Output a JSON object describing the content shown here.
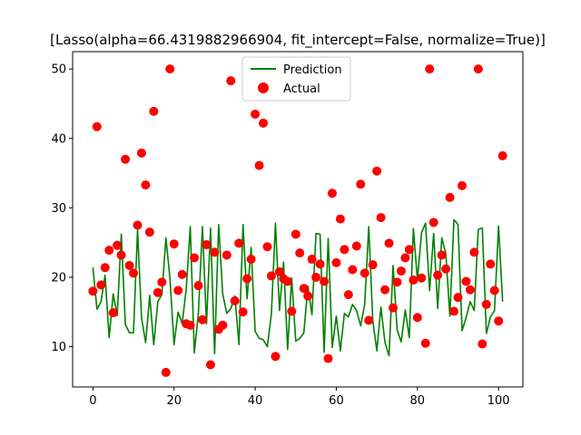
{
  "chart_data": {
    "type": "line",
    "title": "[Lasso(alpha=66.4319882966904, fit_intercept=False, normalize=True)]",
    "xlabel": "",
    "ylabel": "",
    "xlim": [
      -5,
      106
    ],
    "ylim": [
      4.2,
      52.5
    ],
    "x_ticks": [
      0,
      20,
      40,
      60,
      80,
      100
    ],
    "y_ticks": [
      10,
      20,
      30,
      40,
      50
    ],
    "legend_position": "upper center",
    "series": [
      {
        "name": "Prediction",
        "kind": "line",
        "color": "#008000",
        "x": [
          0,
          1,
          2,
          3,
          4,
          5,
          6,
          7,
          8,
          9,
          10,
          11,
          12,
          13,
          14,
          15,
          16,
          17,
          18,
          19,
          20,
          21,
          22,
          23,
          24,
          25,
          26,
          27,
          28,
          29,
          30,
          31,
          32,
          33,
          34,
          35,
          36,
          37,
          38,
          39,
          40,
          41,
          42,
          43,
          44,
          45,
          46,
          47,
          48,
          49,
          50,
          51,
          52,
          53,
          54,
          55,
          56,
          57,
          58,
          59,
          60,
          61,
          62,
          63,
          64,
          65,
          66,
          67,
          68,
          69,
          70,
          71,
          72,
          73,
          74,
          75,
          76,
          77,
          78,
          79,
          80,
          81,
          82,
          83,
          84,
          85,
          86,
          87,
          88,
          89,
          90,
          91,
          92,
          93,
          94,
          95,
          96,
          97,
          98,
          99,
          100,
          101
        ],
        "values": [
          21.4,
          15.4,
          16.5,
          20.3,
          11.3,
          17.6,
          14.5,
          26.2,
          13.2,
          12.0,
          12.0,
          26.8,
          14.1,
          10.6,
          17.4,
          10.3,
          16.5,
          17.5,
          25.7,
          19.8,
          10.3,
          15.0,
          13.3,
          18.3,
          27.3,
          9.1,
          14.8,
          27.3,
          13.3,
          27.1,
          9.0,
          27.6,
          17.6,
          14.8,
          15.5,
          17.3,
          10.3,
          27.6,
          16.9,
          24.3,
          12.2,
          11.2,
          11.0,
          10.0,
          14.7,
          27.8,
          15.2,
          22.2,
          9.6,
          19.9,
          10.8,
          11.2,
          12.0,
          18.7,
          14.6,
          26.3,
          26.2,
          9.2,
          25.6,
          9.9,
          14.4,
          9.4,
          14.8,
          14.3,
          16.1,
          15.2,
          13.0,
          16.1,
          27.3,
          13.7,
          9.4,
          15.7,
          10.6,
          8.7,
          21.7,
          12.4,
          10.7,
          15.3,
          11.3,
          27.0,
          19.6,
          26.4,
          27.8,
          18.1,
          26.3,
          15.5,
          25.7,
          23.4,
          14.4,
          28.3,
          27.6,
          12.3,
          14.2,
          16.5,
          15.2,
          26.9,
          27.1,
          11.9,
          14.3,
          15.2,
          27.4,
          16.5
        ]
      },
      {
        "name": "Actual",
        "kind": "scatter",
        "color": "#ff0000",
        "x": [
          0,
          1,
          2,
          3,
          4,
          5,
          6,
          7,
          8,
          9,
          10,
          11,
          12,
          13,
          14,
          15,
          16,
          17,
          18,
          19,
          20,
          21,
          22,
          23,
          24,
          25,
          26,
          27,
          28,
          29,
          30,
          31,
          32,
          33,
          34,
          35,
          36,
          37,
          38,
          39,
          40,
          41,
          42,
          43,
          44,
          45,
          46,
          47,
          48,
          49,
          50,
          51,
          52,
          53,
          54,
          55,
          56,
          57,
          58,
          59,
          60,
          61,
          62,
          63,
          64,
          65,
          66,
          67,
          68,
          69,
          70,
          71,
          72,
          73,
          74,
          75,
          76,
          77,
          78,
          79,
          80,
          81,
          82,
          83,
          84,
          85,
          86,
          87,
          88,
          89,
          90,
          91,
          92,
          93,
          94,
          95,
          96,
          97,
          98,
          99,
          100,
          101
        ],
        "values": [
          18.0,
          41.7,
          18.9,
          21.4,
          23.9,
          14.9,
          24.6,
          23.2,
          37.0,
          21.7,
          20.6,
          27.5,
          37.9,
          33.3,
          26.5,
          43.9,
          17.8,
          19.3,
          6.3,
          50.0,
          24.8,
          18.1,
          20.4,
          13.3,
          13.1,
          22.8,
          18.8,
          13.9,
          24.7,
          7.4,
          23.6,
          12.5,
          13.1,
          23.2,
          48.3,
          16.6,
          24.9,
          15.0,
          19.8,
          22.6,
          43.5,
          36.1,
          42.2,
          24.4,
          20.2,
          8.6,
          20.8,
          19.8,
          19.4,
          15.1,
          26.2,
          23.5,
          18.4,
          17.3,
          22.6,
          20.0,
          21.9,
          19.4,
          8.3,
          32.1,
          22.1,
          28.4,
          24.0,
          17.5,
          21.1,
          24.5,
          33.4,
          20.6,
          13.8,
          21.8,
          35.3,
          28.6,
          18.2,
          24.9,
          15.6,
          19.3,
          20.9,
          22.8,
          24.0,
          19.6,
          14.2,
          19.9,
          10.5,
          50.0,
          27.9,
          20.3,
          23.2,
          21.2,
          31.5,
          15.1,
          17.1,
          33.2,
          19.4,
          18.2,
          23.6,
          50.0,
          10.4,
          16.1,
          21.9,
          18.1,
          13.7,
          37.5
        ]
      }
    ]
  }
}
